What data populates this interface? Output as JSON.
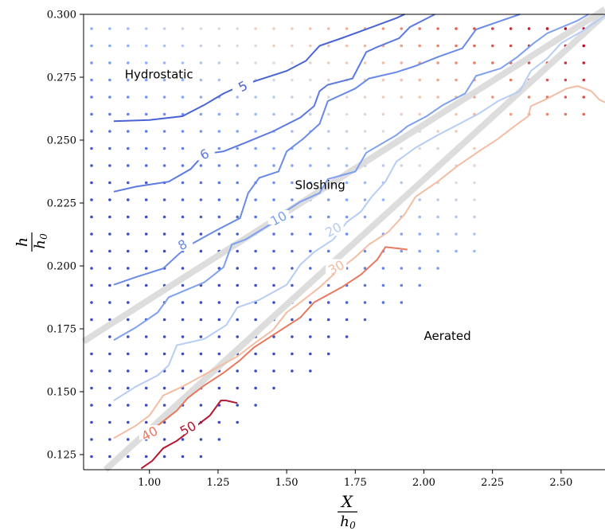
{
  "chart_data": {
    "type": "contour",
    "xlabel_num": "X",
    "xlabel_den": "h",
    "xlabel_den_sub": "0",
    "ylabel_num": "h",
    "ylabel_den": "h",
    "ylabel_den_sub": "0",
    "xlim": [
      0.76,
      2.66
    ],
    "ylim": [
      0.119,
      0.3
    ],
    "x_ticks": [
      1.0,
      1.25,
      1.5,
      1.75,
      2.0,
      2.25,
      2.5
    ],
    "x_tick_labels": [
      "1.00",
      "1.25",
      "1.50",
      "1.75",
      "2.00",
      "2.25",
      "2.50"
    ],
    "y_ticks": [
      0.125,
      0.15,
      0.175,
      0.2,
      0.225,
      0.25,
      0.275,
      0.3
    ],
    "y_tick_labels": [
      "0.125",
      "0.150",
      "0.175",
      "0.200",
      "0.225",
      "0.250",
      "0.275",
      "0.300"
    ],
    "grid": false,
    "regions": [
      {
        "label": "Hydrostatic",
        "x": 0.91,
        "y": 0.2745
      },
      {
        "label": "Sloshing",
        "x": 1.53,
        "y": 0.2305
      },
      {
        "label": "Aerated",
        "x": 2.0,
        "y": 0.1705
      }
    ],
    "boundary_lines": [
      {
        "points": [
          [
            0.76,
            0.17
          ],
          [
            2.66,
            0.302
          ]
        ],
        "color": "#dddddd"
      },
      {
        "points": [
          [
            0.84,
            0.119
          ],
          [
            2.66,
            0.3
          ]
        ],
        "color": "#dddddd"
      }
    ],
    "contours": [
      {
        "level": "5",
        "color": "#4a63d3",
        "label_pos": [
          1.34,
          0.2715
        ],
        "points": [
          [
            0.87,
            0.2575
          ],
          [
            1.0,
            0.258
          ],
          [
            1.12,
            0.2595
          ],
          [
            1.2,
            0.264
          ],
          [
            1.27,
            0.2685
          ],
          [
            1.33,
            0.2715
          ],
          [
            1.4,
            0.274
          ],
          [
            1.5,
            0.2775
          ],
          [
            1.57,
            0.2815
          ],
          [
            1.62,
            0.2875
          ],
          [
            1.7,
            0.2905
          ],
          [
            1.8,
            0.2945
          ],
          [
            1.9,
            0.2985
          ],
          [
            1.93,
            0.3
          ]
        ]
      },
      {
        "level": "6",
        "color": "#5b79e0",
        "label_pos": [
          1.2,
          0.2445
        ],
        "points": [
          [
            0.87,
            0.2295
          ],
          [
            0.95,
            0.2315
          ],
          [
            1.07,
            0.2335
          ],
          [
            1.15,
            0.2385
          ],
          [
            1.2,
            0.2445
          ],
          [
            1.27,
            0.2455
          ],
          [
            1.35,
            0.249
          ],
          [
            1.45,
            0.2535
          ],
          [
            1.55,
            0.259
          ],
          [
            1.6,
            0.2635
          ],
          [
            1.62,
            0.2695
          ],
          [
            1.65,
            0.272
          ],
          [
            1.74,
            0.2745
          ],
          [
            1.79,
            0.285
          ],
          [
            1.83,
            0.287
          ],
          [
            1.91,
            0.2905
          ],
          [
            1.95,
            0.295
          ],
          [
            2.04,
            0.3
          ]
        ]
      },
      {
        "level": "8",
        "color": "#6a8ae6",
        "label_pos": [
          1.12,
          0.2085
        ],
        "points": [
          [
            0.87,
            0.1925
          ],
          [
            0.95,
            0.1955
          ],
          [
            1.05,
            0.199
          ],
          [
            1.11,
            0.205
          ],
          [
            1.15,
            0.2085
          ],
          [
            1.25,
            0.2145
          ],
          [
            1.33,
            0.219
          ],
          [
            1.36,
            0.229
          ],
          [
            1.4,
            0.235
          ],
          [
            1.47,
            0.2375
          ],
          [
            1.5,
            0.2455
          ],
          [
            1.56,
            0.2505
          ],
          [
            1.62,
            0.2565
          ],
          [
            1.65,
            0.2655
          ],
          [
            1.75,
            0.2705
          ],
          [
            1.8,
            0.2745
          ],
          [
            1.9,
            0.277
          ],
          [
            1.97,
            0.2795
          ],
          [
            2.05,
            0.283
          ],
          [
            2.14,
            0.2865
          ],
          [
            2.19,
            0.294
          ],
          [
            2.23,
            0.2955
          ],
          [
            2.31,
            0.2985
          ],
          [
            2.35,
            0.3
          ]
        ]
      },
      {
        "level": "10",
        "color": "#7ea0ee",
        "label_pos": [
          1.47,
          0.219
        ],
        "points": [
          [
            0.87,
            0.1705
          ],
          [
            0.95,
            0.1755
          ],
          [
            1.03,
            0.1815
          ],
          [
            1.07,
            0.1875
          ],
          [
            1.2,
            0.1935
          ],
          [
            1.27,
            0.1995
          ],
          [
            1.3,
            0.2085
          ],
          [
            1.35,
            0.2105
          ],
          [
            1.44,
            0.2165
          ],
          [
            1.5,
            0.222
          ],
          [
            1.55,
            0.2255
          ],
          [
            1.62,
            0.229
          ],
          [
            1.65,
            0.2345
          ],
          [
            1.75,
            0.2375
          ],
          [
            1.79,
            0.245
          ],
          [
            1.9,
            0.252
          ],
          [
            1.94,
            0.2555
          ],
          [
            2.01,
            0.2595
          ],
          [
            2.07,
            0.264
          ],
          [
            2.15,
            0.2685
          ],
          [
            2.19,
            0.2755
          ],
          [
            2.28,
            0.2785
          ],
          [
            2.34,
            0.283
          ],
          [
            2.4,
            0.2885
          ],
          [
            2.45,
            0.2925
          ],
          [
            2.56,
            0.2975
          ],
          [
            2.6,
            0.3
          ]
        ]
      },
      {
        "level": "20",
        "color": "#b6cdf4",
        "label_pos": [
          1.67,
          0.2145
        ],
        "points": [
          [
            0.87,
            0.1465
          ],
          [
            0.95,
            0.152
          ],
          [
            1.03,
            0.1565
          ],
          [
            1.07,
            0.1605
          ],
          [
            1.1,
            0.1685
          ],
          [
            1.2,
            0.171
          ],
          [
            1.28,
            0.1765
          ],
          [
            1.32,
            0.1835
          ],
          [
            1.4,
            0.1865
          ],
          [
            1.5,
            0.1925
          ],
          [
            1.55,
            0.2005
          ],
          [
            1.6,
            0.2055
          ],
          [
            1.67,
            0.2105
          ],
          [
            1.72,
            0.2175
          ],
          [
            1.77,
            0.2215
          ],
          [
            1.81,
            0.2275
          ],
          [
            1.86,
            0.2335
          ],
          [
            1.9,
            0.2415
          ],
          [
            1.97,
            0.247
          ],
          [
            2.05,
            0.252
          ],
          [
            2.13,
            0.2565
          ],
          [
            2.2,
            0.2605
          ],
          [
            2.27,
            0.2655
          ],
          [
            2.35,
            0.2695
          ],
          [
            2.39,
            0.2775
          ],
          [
            2.45,
            0.2825
          ],
          [
            2.5,
            0.2885
          ],
          [
            2.58,
            0.2935
          ],
          [
            2.66,
            0.2995
          ]
        ]
      },
      {
        "level": "30",
        "color": "#f3bda3",
        "label_pos": [
          1.68,
          0.1995
        ],
        "points": [
          [
            0.87,
            0.1315
          ],
          [
            0.95,
            0.1365
          ],
          [
            1.0,
            0.1405
          ],
          [
            1.05,
            0.1485
          ],
          [
            1.12,
            0.152
          ],
          [
            1.22,
            0.158
          ],
          [
            1.32,
            0.164
          ],
          [
            1.38,
            0.169
          ],
          [
            1.45,
            0.1745
          ],
          [
            1.5,
            0.1815
          ],
          [
            1.55,
            0.1855
          ],
          [
            1.62,
            0.1915
          ],
          [
            1.68,
            0.1975
          ],
          [
            1.75,
            0.2035
          ],
          [
            1.8,
            0.2085
          ],
          [
            1.87,
            0.2135
          ],
          [
            1.93,
            0.2205
          ],
          [
            1.97,
            0.2275
          ],
          [
            2.05,
            0.2335
          ],
          [
            2.12,
            0.2395
          ],
          [
            2.2,
            0.2455
          ],
          [
            2.27,
            0.2505
          ],
          [
            2.33,
            0.2555
          ],
          [
            2.38,
            0.2595
          ],
          [
            2.39,
            0.2635
          ],
          [
            2.45,
            0.2665
          ],
          [
            2.52,
            0.2705
          ],
          [
            2.56,
            0.2715
          ],
          [
            2.61,
            0.2695
          ],
          [
            2.64,
            0.266
          ],
          [
            2.66,
            0.265
          ]
        ]
      },
      {
        "level": "40",
        "color": "#e8785e",
        "label_pos": [
          1.0,
          0.1335
        ],
        "points": [
          [
            1.03,
            0.1365
          ],
          [
            1.1,
            0.1425
          ],
          [
            1.14,
            0.1475
          ],
          [
            1.2,
            0.1525
          ],
          [
            1.27,
            0.1575
          ],
          [
            1.33,
            0.1625
          ],
          [
            1.38,
            0.1675
          ],
          [
            1.45,
            0.1725
          ],
          [
            1.55,
            0.1795
          ],
          [
            1.6,
            0.1855
          ],
          [
            1.7,
            0.1915
          ],
          [
            1.77,
            0.1965
          ],
          [
            1.83,
            0.2025
          ],
          [
            1.86,
            0.2075
          ],
          [
            1.94,
            0.2065
          ]
        ]
      },
      {
        "level": "50",
        "color": "#b4162f",
        "label_pos": [
          1.14,
          0.1355
        ],
        "points": [
          [
            0.97,
            0.1195
          ],
          [
            1.01,
            0.1225
          ],
          [
            1.05,
            0.1275
          ],
          [
            1.1,
            0.1305
          ],
          [
            1.22,
            0.1405
          ],
          [
            1.26,
            0.1465
          ],
          [
            1.28,
            0.1465
          ],
          [
            1.32,
            0.1455
          ]
        ]
      }
    ]
  }
}
